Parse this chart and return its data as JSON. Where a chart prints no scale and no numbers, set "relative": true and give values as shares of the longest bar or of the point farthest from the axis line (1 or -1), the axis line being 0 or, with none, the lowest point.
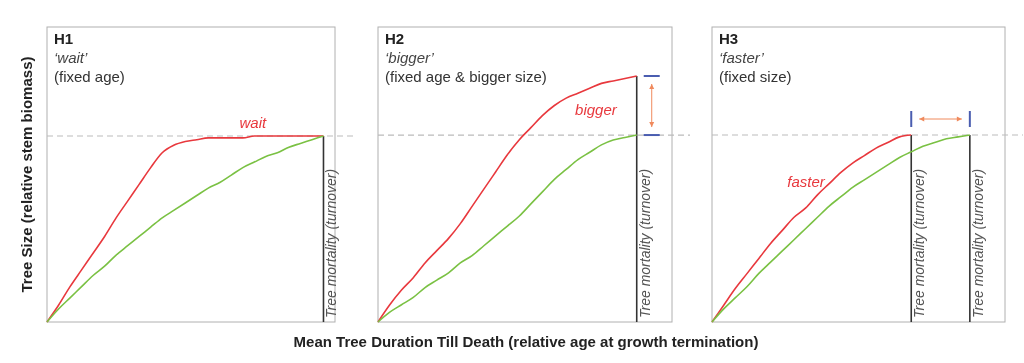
{
  "chart_data": [
    {
      "type": "line",
      "title": "H1",
      "subtitle": "‘wait’",
      "ylabel": "Tree Size (relative stem biomass)",
      "relative": true,
      "categories": [
        null,
        null,
        null,
        null,
        null,
        null,
        null,
        null,
        null,
        null,
        null,
        null,
        null,
        null,
        null,
        null,
        null,
        null,
        null,
        null,
        null,
        null,
        null,
        null,
        null,
        null
      ],
      "series": [
        {
          "name": "wait",
          "color": "#e8383d",
          "values": [
            0,
            0.09,
            0.19,
            0.28,
            0.37,
            0.46,
            0.56,
            0.65,
            0.74,
            0.83,
            0.91,
            0.95,
            0.97,
            0.98,
            0.99,
            0.99,
            0.99,
            0.99,
            1,
            1,
            1,
            1,
            1,
            1,
            1,
            null
          ]
        },
        {
          "color": "#7ac143",
          "values": [
            0,
            0.07,
            0.13,
            0.19,
            0.25,
            0.3,
            0.36,
            0.41,
            0.46,
            0.51,
            0.56,
            0.6,
            0.64,
            0.68,
            0.72,
            0.75,
            0.79,
            0.83,
            0.86,
            0.89,
            0.91,
            0.94,
            0.96,
            0.98,
            1,
            null
          ]
        }
      ],
      "ref_lines": [
        {
          "axis": "y",
          "value": 1,
          "color": "#bbbbbb",
          "line_style": "dashed"
        }
      ],
      "annotations": [
        "(fixed age)",
        "Tree mortality (turnover)"
      ]
    },
    {
      "type": "line",
      "title": "H2",
      "subtitle": "‘bigger’",
      "xlabel": "Mean Tree Duration Till Death (relative age at growth termination)",
      "relative": true,
      "categories": [
        null,
        null,
        null,
        null,
        null,
        null,
        null,
        null,
        null,
        null,
        null,
        null,
        null,
        null,
        null,
        null,
        null,
        null,
        null,
        null,
        null,
        null,
        null,
        null,
        null,
        null
      ],
      "series": [
        {
          "name": "bigger",
          "color": "#e8383d",
          "values": [
            0,
            0.07,
            0.13,
            0.18,
            0.24,
            0.29,
            0.34,
            0.4,
            0.47,
            0.54,
            0.61,
            0.68,
            0.74,
            0.79,
            0.84,
            0.88,
            0.91,
            0.93,
            0.95,
            0.97,
            0.98,
            0.99,
            1,
            null,
            null,
            null
          ]
        },
        {
          "color": "#7ac143",
          "values": [
            0,
            0.04,
            0.07,
            0.1,
            0.14,
            0.17,
            0.2,
            0.24,
            0.27,
            0.31,
            0.35,
            0.39,
            0.43,
            0.48,
            0.53,
            0.58,
            0.62,
            0.66,
            0.69,
            0.72,
            0.74,
            0.75,
            0.76,
            null,
            null,
            null
          ]
        }
      ],
      "ref_lines": [
        {
          "axis": "y",
          "value": 0.76,
          "color": "#bbbbbb",
          "line_style": "dashed"
        }
      ],
      "annotations": [
        "(fixed age & bigger size)",
        "Tree mortality (turnover)"
      ]
    },
    {
      "type": "line",
      "title": "H3",
      "subtitle": "‘faster’",
      "relative": true,
      "categories": [
        null,
        null,
        null,
        null,
        null,
        null,
        null,
        null,
        null,
        null,
        null,
        null,
        null,
        null,
        null,
        null,
        null,
        null,
        null,
        null,
        null,
        null,
        null,
        null,
        null,
        null
      ],
      "series": [
        {
          "name": "faster",
          "color": "#e8383d",
          "values": [
            0,
            0.09,
            0.18,
            0.26,
            0.34,
            0.42,
            0.49,
            0.56,
            0.61,
            0.68,
            0.74,
            0.8,
            0.85,
            0.89,
            0.93,
            0.96,
            0.99,
            1,
            null,
            null,
            null,
            null,
            null,
            null,
            null,
            null
          ]
        },
        {
          "color": "#7ac143",
          "values": [
            0,
            0.07,
            0.13,
            0.19,
            0.26,
            0.32,
            0.38,
            0.44,
            0.5,
            0.56,
            0.62,
            0.67,
            0.72,
            0.76,
            0.8,
            0.84,
            0.88,
            0.91,
            0.94,
            0.96,
            0.98,
            0.99,
            1,
            null,
            null,
            null
          ]
        }
      ],
      "ref_lines": [
        {
          "axis": "y",
          "value": 1,
          "color": "#bbbbbb",
          "line_style": "dashed"
        }
      ],
      "annotations": [
        "(fixed size)",
        "Tree mortality (turnover)",
        "Tree mortality (turnover)"
      ]
    }
  ]
}
